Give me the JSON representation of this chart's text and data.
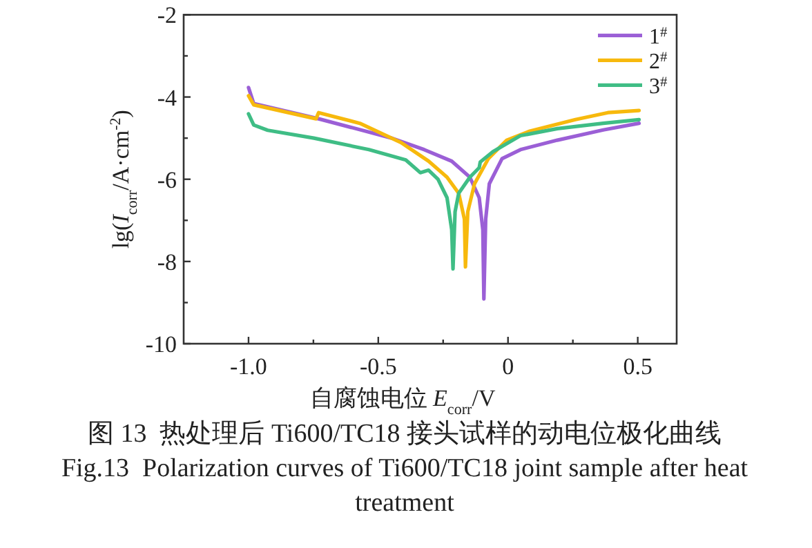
{
  "chart_data": {
    "type": "line",
    "xlabel": "自腐蚀电位 *E*$_{corr}$/V",
    "ylabel": "lg(*I*$_{corr}$/A·cm$^{-2}$)",
    "xlim": [
      -1.25,
      0.65
    ],
    "ylim": [
      -10,
      -2
    ],
    "xticks": [
      {
        "value": -1,
        "label": "-1.0"
      },
      {
        "value": -0.75,
        "label": null
      },
      -0.5,
      {
        "value": -0.25,
        "label": null
      },
      0,
      {
        "value": 0.25,
        "label": null
      },
      0.5
    ],
    "yticks": [
      -10,
      {
        "value": -9,
        "label": null
      },
      -8,
      {
        "value": -7,
        "label": null
      },
      -6,
      {
        "value": -5,
        "label": null
      },
      -4,
      {
        "value": -3,
        "label": null
      },
      -2
    ],
    "legend": "top right",
    "grid": false,
    "marker": "none",
    "line_style": "solid",
    "annotations": [
      "图 13  热处理后 Ti600/TC18 接头试样的动电位极化曲线",
      "Fig.13  Polarization curves of Ti600/TC18 joint sample after heat treatment"
    ],
    "series": [
      {
        "name": "1$^{#}$",
        "color": "#9b5fd6",
        "x": [
          -1.0,
          -0.98,
          -0.73,
          -0.448,
          -0.323,
          -0.217,
          -0.147,
          -0.111,
          -0.097,
          -0.093,
          -0.086,
          -0.072,
          -0.023,
          0.048,
          0.19,
          0.367,
          0.505
        ],
        "values": [
          -3.77,
          -4.16,
          -4.53,
          -5.0,
          -5.28,
          -5.56,
          -5.95,
          -6.45,
          -7.23,
          -8.91,
          -6.97,
          -6.11,
          -5.5,
          -5.28,
          -5.05,
          -4.8,
          -4.64
        ]
      },
      {
        "name": "2$^{#}$",
        "color": "#f7b90d",
        "x": [
          -1.0,
          -0.98,
          -0.74,
          -0.73,
          -0.571,
          -0.412,
          -0.306,
          -0.235,
          -0.19,
          -0.168,
          -0.164,
          -0.155,
          -0.129,
          -0.076,
          -0.005,
          0.084,
          0.26,
          0.385,
          0.505
        ],
        "values": [
          -3.97,
          -4.19,
          -4.53,
          -4.38,
          -4.64,
          -5.11,
          -5.56,
          -5.95,
          -6.34,
          -6.97,
          -8.13,
          -6.79,
          -6.11,
          -5.5,
          -5.05,
          -4.83,
          -4.55,
          -4.38,
          -4.33
        ]
      },
      {
        "name": "3$^{#}$",
        "color": "#3fbd85",
        "x": [
          -1.0,
          -0.98,
          -0.926,
          -0.748,
          -0.536,
          -0.394,
          -0.338,
          -0.306,
          -0.27,
          -0.235,
          -0.217,
          -0.212,
          -0.204,
          -0.19,
          -0.147,
          -0.111,
          -0.107,
          -0.058,
          0.048,
          0.19,
          0.367,
          0.505
        ],
        "values": [
          -4.41,
          -4.68,
          -4.81,
          -5.0,
          -5.28,
          -5.53,
          -5.84,
          -5.78,
          -6.0,
          -6.45,
          -7.23,
          -8.18,
          -6.79,
          -6.34,
          -5.95,
          -5.72,
          -5.58,
          -5.33,
          -4.94,
          -4.77,
          -4.64,
          -4.55
        ]
      }
    ]
  }
}
